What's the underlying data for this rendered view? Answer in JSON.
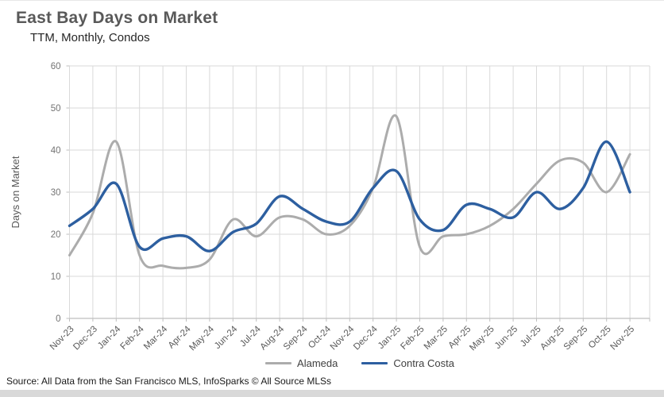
{
  "header": {
    "title": "East Bay Days on Market",
    "subtitle": "TTM, Monthly, Condos"
  },
  "chart_data": {
    "type": "line",
    "smooth": true,
    "title": "East Bay Days on Market",
    "subtitle": "TTM, Monthly, Condos",
    "xlabel": "",
    "ylabel": "Days on Market",
    "ylim": [
      0,
      60
    ],
    "yticks": [
      0,
      10,
      20,
      30,
      40,
      50,
      60
    ],
    "grid": true,
    "legend_position": "bottom",
    "categories": [
      "Nov-23",
      "Dec-23",
      "Jan-24",
      "Feb-24",
      "Mar-24",
      "Apr-24",
      "May-24",
      "Jun-24",
      "Jul-24",
      "Aug-24",
      "Sep-24",
      "Oct-24",
      "Nov-24",
      "Dec-24",
      "Jan-25",
      "Feb-25",
      "Mar-25",
      "Apr-25",
      "May-25",
      "Jun-25",
      "Jul-25",
      "Aug-25",
      "Sep-25",
      "Oct-25",
      "Nov-25"
    ],
    "series": [
      {
        "name": "Alameda",
        "color": "#acacac",
        "stroke_width": 3,
        "values": [
          15,
          25,
          42,
          15,
          12.5,
          12,
          14,
          23.5,
          19.5,
          24,
          23.5,
          20,
          22,
          31,
          48,
          17,
          19.5,
          20,
          22,
          26,
          32,
          37.5,
          37,
          30,
          39
        ]
      },
      {
        "name": "Contra Costa",
        "color": "#2d5fa0",
        "stroke_width": 3.4,
        "values": [
          22,
          26,
          32,
          17,
          19,
          19.5,
          16,
          20.5,
          22.5,
          29,
          26,
          23,
          23,
          31,
          35,
          23.5,
          21,
          27,
          26,
          24,
          30,
          26,
          31,
          42,
          30
        ]
      }
    ],
    "colors": {
      "gridline": "#d9d9d9",
      "axis_line": "#bfbfbf",
      "tick_label": "#737373",
      "x_tick_label": "#595959",
      "axis_title": "#595959"
    }
  },
  "source": {
    "text": "Source: All Data from the San Francisco MLS, InfoSparks © All Source MLSs"
  }
}
